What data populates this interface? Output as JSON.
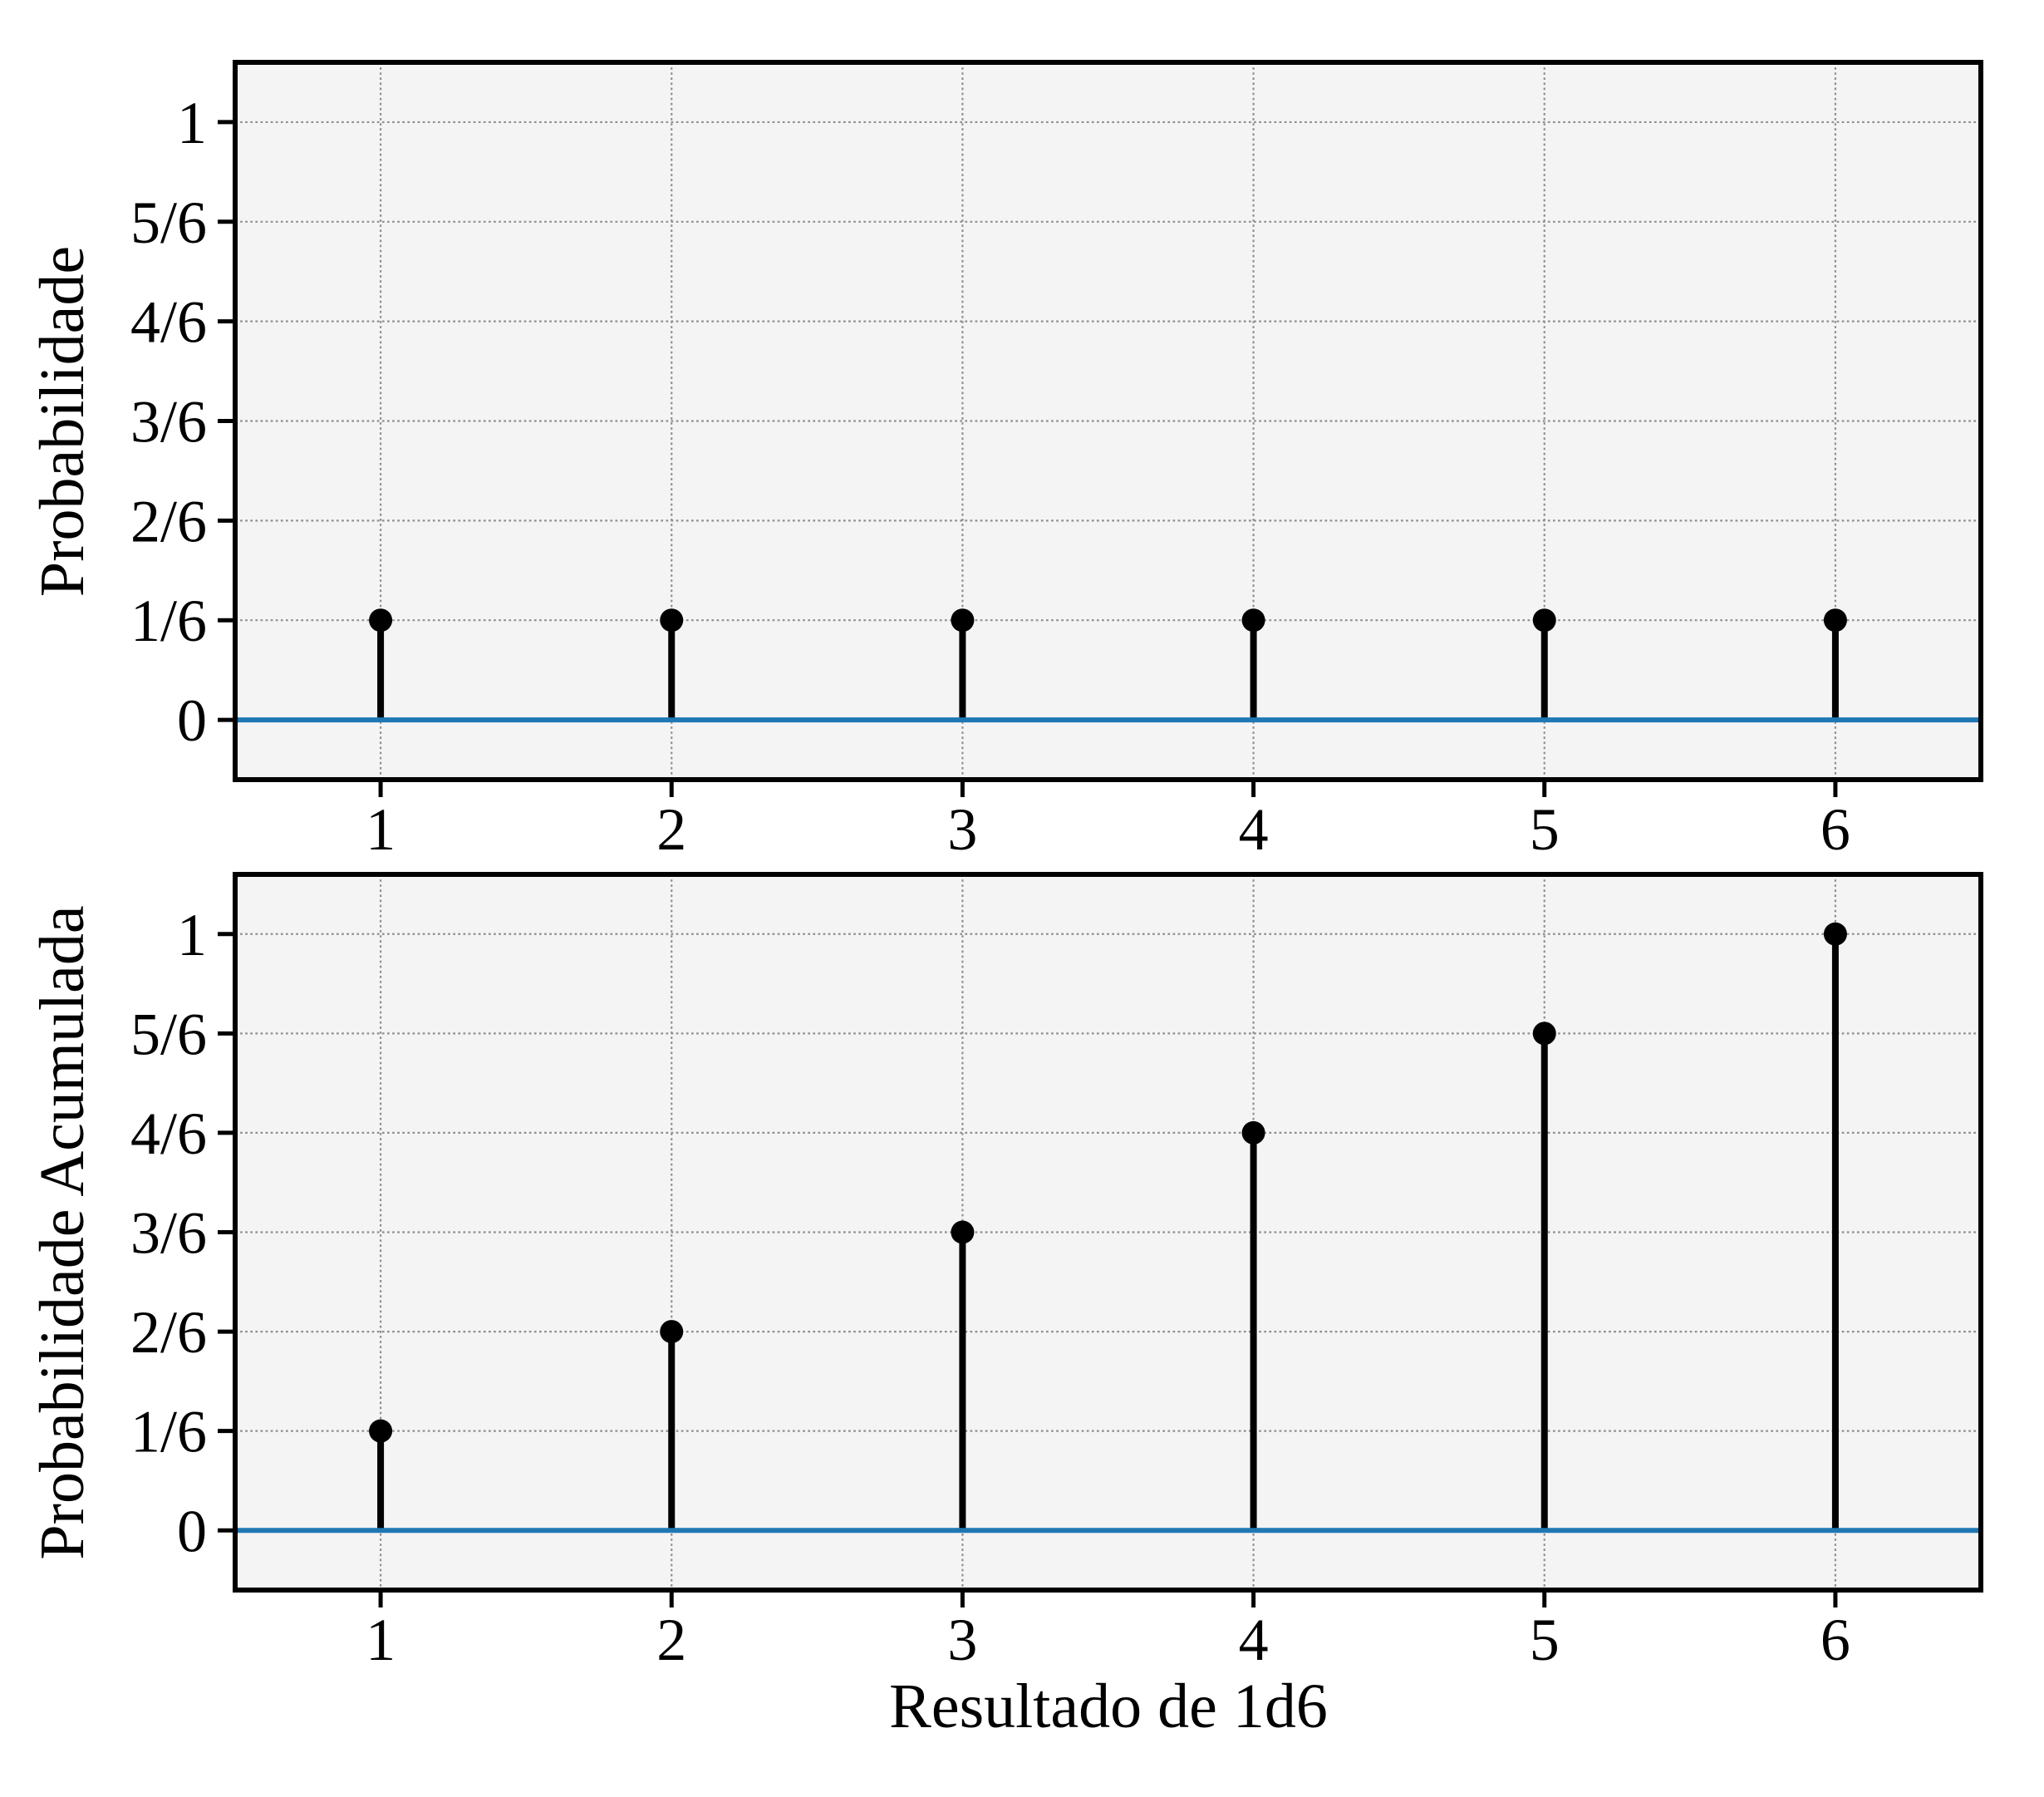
{
  "colors": {
    "figure_bg": "#ffffff",
    "axes_bg": "#f4f4f4",
    "grid": "#8e8e8e",
    "spine": "#000000",
    "tick": "#000000",
    "text": "#000000",
    "stem": "#000000",
    "marker": "#000000",
    "baseline": "#1f77b4"
  },
  "chart_data": [
    {
      "type": "stem",
      "title": "",
      "ylabel": "Probabilidade",
      "xlabel": "",
      "x": [
        1,
        2,
        3,
        4,
        5,
        6
      ],
      "values": [
        0.1667,
        0.1667,
        0.1667,
        0.1667,
        0.1667,
        0.1667
      ],
      "value_labels": [
        "1/6",
        "1/6",
        "1/6",
        "1/6",
        "1/6",
        "1/6"
      ],
      "xlim": [
        0.5,
        6.5
      ],
      "ylim": [
        -0.1,
        1.1
      ],
      "baseline": 0,
      "grid": true,
      "grid_style": "dotted",
      "xticks": {
        "values": [
          1,
          2,
          3,
          4,
          5,
          6
        ],
        "labels": [
          "1",
          "2",
          "3",
          "4",
          "5",
          "6"
        ]
      },
      "yticks": {
        "values": [
          0,
          0.1667,
          0.3333,
          0.5,
          0.6667,
          0.8333,
          1
        ],
        "labels": [
          "0",
          "1/6",
          "2/6",
          "3/6",
          "4/6",
          "5/6",
          "1"
        ]
      }
    },
    {
      "type": "stem",
      "title": "",
      "ylabel": "Probabilidade Acumulada",
      "xlabel": "Resultado de 1d6",
      "x": [
        1,
        2,
        3,
        4,
        5,
        6
      ],
      "values": [
        0.1667,
        0.3333,
        0.5,
        0.6667,
        0.8333,
        1.0
      ],
      "value_labels": [
        "1/6",
        "2/6",
        "3/6",
        "4/6",
        "5/6",
        "1"
      ],
      "xlim": [
        0.5,
        6.5
      ],
      "ylim": [
        -0.1,
        1.1
      ],
      "baseline": 0,
      "grid": true,
      "grid_style": "dotted",
      "xticks": {
        "values": [
          1,
          2,
          3,
          4,
          5,
          6
        ],
        "labels": [
          "1",
          "2",
          "3",
          "4",
          "5",
          "6"
        ]
      },
      "yticks": {
        "values": [
          0,
          0.1667,
          0.3333,
          0.5,
          0.6667,
          0.8333,
          1
        ],
        "labels": [
          "0",
          "1/6",
          "2/6",
          "3/6",
          "4/6",
          "5/6",
          "1"
        ]
      }
    }
  ]
}
